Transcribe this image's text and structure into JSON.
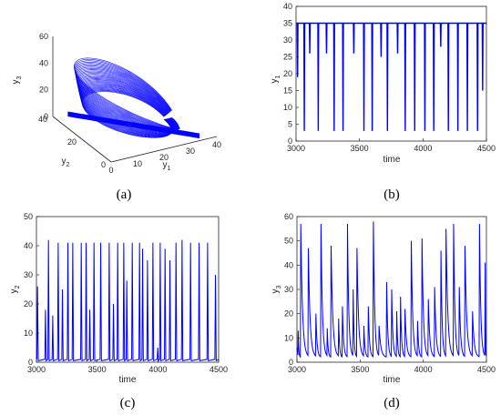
{
  "colors": {
    "series": "#0000ff",
    "axis": "#262626"
  },
  "chart_data": [
    {
      "panel": "a",
      "caption": "(a)",
      "type": "line",
      "projection": "3d",
      "xlabel": "y1",
      "ylabel": "y2",
      "zlabel": "y3",
      "xlim": [
        0,
        40
      ],
      "ylim": [
        0,
        40
      ],
      "zlim": [
        0,
        60
      ],
      "xticks": [
        0,
        10,
        20,
        30,
        40
      ],
      "yticks": [
        0,
        20,
        40
      ],
      "zticks": [
        0,
        20,
        40,
        60
      ],
      "grid": false,
      "series": [
        {
          "description_points": [
            [
              34,
              0,
              2
            ],
            [
              34,
              2,
              15
            ],
            [
              33,
              10,
              30
            ],
            [
              30,
              25,
              40
            ],
            [
              20,
              38,
              42
            ],
            [
              8,
              40,
              30
            ],
            [
              3,
              35,
              10
            ],
            [
              0,
              30,
              2
            ],
            [
              10,
              20,
              1
            ],
            [
              34,
              0,
              2
            ]
          ]
        }
      ]
    },
    {
      "panel": "b",
      "caption": "(b)",
      "type": "line",
      "xlabel": "time",
      "ylabel": "y1",
      "xlim": [
        3000,
        4500
      ],
      "ylim": [
        0,
        40
      ],
      "xticks": [
        3000,
        3500,
        4000,
        4500
      ],
      "yticks": [
        0,
        5,
        10,
        15,
        20,
        25,
        30,
        35,
        40
      ],
      "baseline": 35,
      "grid": false,
      "events": [
        {
          "x": 3012,
          "y": 19
        },
        {
          "x": 3065,
          "y": 3
        },
        {
          "x": 3108,
          "y": 26
        },
        {
          "x": 3175,
          "y": 3
        },
        {
          "x": 3240,
          "y": 26
        },
        {
          "x": 3300,
          "y": 3
        },
        {
          "x": 3370,
          "y": 3
        },
        {
          "x": 3455,
          "y": 26
        },
        {
          "x": 3535,
          "y": 3
        },
        {
          "x": 3600,
          "y": 3
        },
        {
          "x": 3670,
          "y": 25
        },
        {
          "x": 3720,
          "y": 3
        },
        {
          "x": 3800,
          "y": 26
        },
        {
          "x": 3860,
          "y": 3
        },
        {
          "x": 3935,
          "y": 3
        },
        {
          "x": 4015,
          "y": 3
        },
        {
          "x": 4085,
          "y": 3
        },
        {
          "x": 4140,
          "y": 28
        },
        {
          "x": 4200,
          "y": 3
        },
        {
          "x": 4275,
          "y": 3
        },
        {
          "x": 4350,
          "y": 3
        },
        {
          "x": 4430,
          "y": 3
        },
        {
          "x": 4470,
          "y": 15
        }
      ]
    },
    {
      "panel": "c",
      "caption": "(c)",
      "type": "line",
      "xlabel": "time",
      "ylabel": "y2",
      "xlim": [
        3000,
        4500
      ],
      "ylim": [
        0,
        50
      ],
      "xticks": [
        3000,
        3500,
        4000,
        4500
      ],
      "yticks": [
        0,
        10,
        20,
        30,
        40,
        50
      ],
      "baseline": 0,
      "grid": false,
      "peaks": [
        {
          "x": 3010,
          "y": 26
        },
        {
          "x": 3075,
          "y": 18
        },
        {
          "x": 3100,
          "y": 42
        },
        {
          "x": 3135,
          "y": 16
        },
        {
          "x": 3180,
          "y": 41
        },
        {
          "x": 3215,
          "y": 25
        },
        {
          "x": 3260,
          "y": 41
        },
        {
          "x": 3300,
          "y": 41
        },
        {
          "x": 3370,
          "y": 41
        },
        {
          "x": 3410,
          "y": 41
        },
        {
          "x": 3440,
          "y": 18
        },
        {
          "x": 3475,
          "y": 41
        },
        {
          "x": 3530,
          "y": 41
        },
        {
          "x": 3600,
          "y": 41
        },
        {
          "x": 3635,
          "y": 20
        },
        {
          "x": 3670,
          "y": 41
        },
        {
          "x": 3720,
          "y": 41
        },
        {
          "x": 3745,
          "y": 28
        },
        {
          "x": 3790,
          "y": 41
        },
        {
          "x": 3850,
          "y": 41
        },
        {
          "x": 3875,
          "y": 39
        },
        {
          "x": 3915,
          "y": 35
        },
        {
          "x": 3960,
          "y": 41
        },
        {
          "x": 4000,
          "y": 5
        },
        {
          "x": 4020,
          "y": 41
        },
        {
          "x": 4060,
          "y": 39
        },
        {
          "x": 4100,
          "y": 35
        },
        {
          "x": 4150,
          "y": 41
        },
        {
          "x": 4200,
          "y": 42
        },
        {
          "x": 4270,
          "y": 41
        },
        {
          "x": 4340,
          "y": 41
        },
        {
          "x": 4410,
          "y": 41
        },
        {
          "x": 4475,
          "y": 30
        }
      ]
    },
    {
      "panel": "d",
      "caption": "(d)",
      "type": "line",
      "xlabel": "time",
      "ylabel": "y3",
      "xlim": [
        3000,
        4500
      ],
      "ylim": [
        0,
        60
      ],
      "xticks": [
        3000,
        3500,
        4000,
        4500
      ],
      "yticks": [
        0,
        10,
        20,
        30,
        40,
        50,
        60
      ],
      "grid": false,
      "peaks": [
        {
          "x": 3010,
          "y": 13
        },
        {
          "x": 3030,
          "y": 57
        },
        {
          "x": 3090,
          "y": 47
        },
        {
          "x": 3150,
          "y": 20
        },
        {
          "x": 3190,
          "y": 57
        },
        {
          "x": 3240,
          "y": 14
        },
        {
          "x": 3270,
          "y": 48
        },
        {
          "x": 3330,
          "y": 18
        },
        {
          "x": 3360,
          "y": 23
        },
        {
          "x": 3400,
          "y": 57
        },
        {
          "x": 3445,
          "y": 30
        },
        {
          "x": 3475,
          "y": 47
        },
        {
          "x": 3530,
          "y": 15
        },
        {
          "x": 3565,
          "y": 23
        },
        {
          "x": 3605,
          "y": 58
        },
        {
          "x": 3650,
          "y": 15
        },
        {
          "x": 3710,
          "y": 33
        },
        {
          "x": 3750,
          "y": 30
        },
        {
          "x": 3790,
          "y": 21
        },
        {
          "x": 3820,
          "y": 27
        },
        {
          "x": 3855,
          "y": 22
        },
        {
          "x": 3905,
          "y": 50
        },
        {
          "x": 3955,
          "y": 17
        },
        {
          "x": 3990,
          "y": 51
        },
        {
          "x": 4040,
          "y": 26
        },
        {
          "x": 4090,
          "y": 31
        },
        {
          "x": 4140,
          "y": 46
        },
        {
          "x": 4180,
          "y": 55
        },
        {
          "x": 4240,
          "y": 57
        },
        {
          "x": 4285,
          "y": 31
        },
        {
          "x": 4330,
          "y": 48
        },
        {
          "x": 4390,
          "y": 21
        },
        {
          "x": 4445,
          "y": 57
        },
        {
          "x": 4490,
          "y": 41
        }
      ]
    }
  ]
}
